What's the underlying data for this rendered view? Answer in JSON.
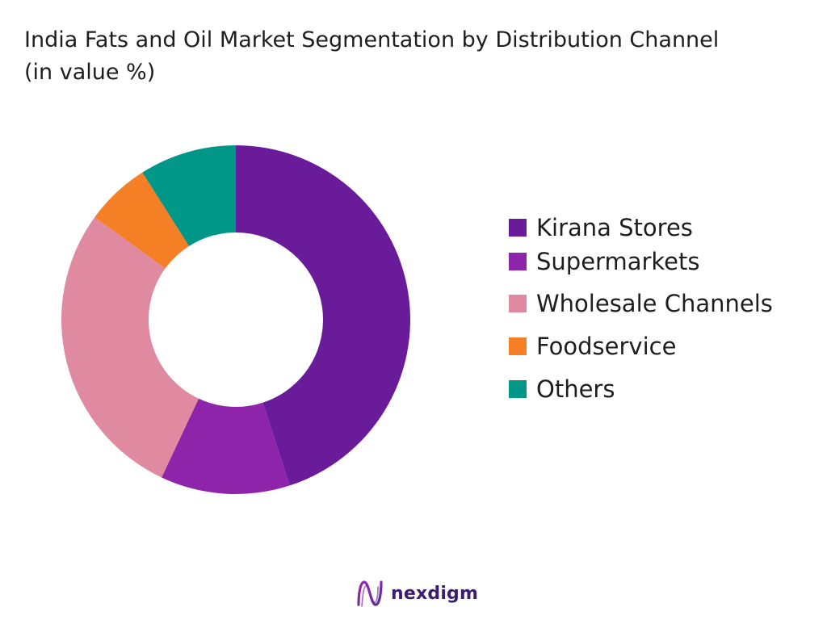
{
  "chart_data": {
    "type": "pie",
    "title": "India Fats and Oil Market Segmentation by Distribution Channel (in value %)",
    "donut": true,
    "legend_position": "right",
    "categories": [
      "Kirana Stores",
      "Supermarkets",
      "Wholesale Channels",
      "Foodservice",
      "Others"
    ],
    "values": [
      45,
      12,
      28,
      6,
      9
    ],
    "colors": [
      "#6a1b9a",
      "#8e24aa",
      "#df8aa0",
      "#f57f25",
      "#009688"
    ]
  },
  "brand": {
    "name": "nexdigm",
    "mark_color_start": "#9c27b0",
    "mark_color_end": "#5c2d91"
  }
}
